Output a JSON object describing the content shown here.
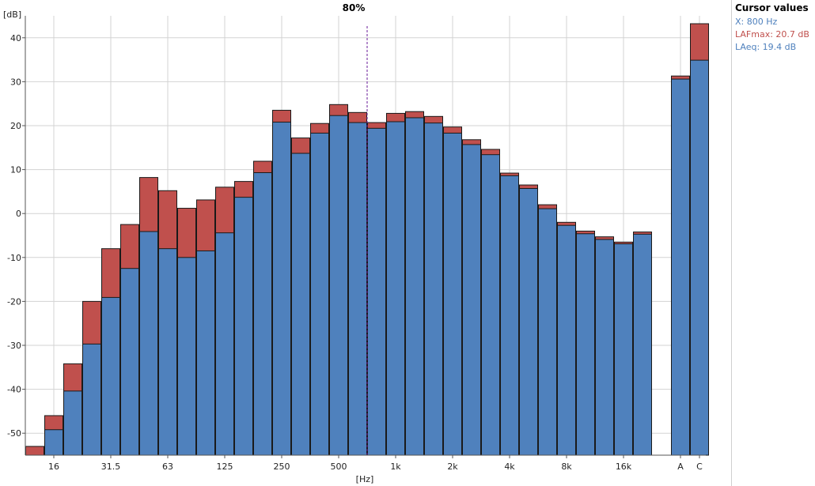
{
  "chart_data": {
    "type": "bar",
    "title": "80%",
    "ylabel": "[dB]",
    "xlabel": "[Hz]",
    "ylim": [
      -55,
      45
    ],
    "y_ticks": [
      -50,
      -40,
      -30,
      -20,
      -10,
      0,
      10,
      20,
      30,
      40
    ],
    "grid": true,
    "categories": [
      "12.5",
      "16",
      "20",
      "25",
      "31.5",
      "40",
      "50",
      "63",
      "80",
      "100",
      "125",
      "160",
      "200",
      "250",
      "315",
      "400",
      "500",
      "630",
      "800",
      "1k",
      "1.25k",
      "1.6k",
      "2k",
      "2.5k",
      "3.15k",
      "4k",
      "5k",
      "6.3k",
      "8k",
      "10k",
      "12.5k",
      "16k",
      "20k",
      "A",
      "C"
    ],
    "x_tick_labels": [
      {
        "category": "16",
        "label": "16"
      },
      {
        "category": "31.5",
        "label": "31.5"
      },
      {
        "category": "63",
        "label": "63"
      },
      {
        "category": "125",
        "label": "125"
      },
      {
        "category": "250",
        "label": "250"
      },
      {
        "category": "500",
        "label": "500"
      },
      {
        "category": "1k",
        "label": "1k"
      },
      {
        "category": "2k",
        "label": "2k"
      },
      {
        "category": "4k",
        "label": "4k"
      },
      {
        "category": "8k",
        "label": "8k"
      },
      {
        "category": "16k",
        "label": "16k"
      },
      {
        "category": "A",
        "label": "A"
      },
      {
        "category": "C",
        "label": "C"
      }
    ],
    "series": [
      {
        "name": "LAFmax",
        "color": "#c0504d",
        "values": [
          -53,
          -46,
          -34.2,
          -20,
          -8,
          -2.5,
          8.2,
          5.2,
          1.2,
          3.1,
          6,
          7.3,
          11.9,
          23.5,
          17.2,
          20.5,
          24.8,
          23,
          20.7,
          22.8,
          23.2,
          22.1,
          19.7,
          16.8,
          14.6,
          9.2,
          6.5,
          2,
          -2,
          -4,
          -5.3,
          -6.5,
          -4.2,
          31.3,
          43.2
        ]
      },
      {
        "name": "LAeq",
        "color": "#4f81bd",
        "values": [
          -56,
          -49.2,
          -40.4,
          -29.7,
          -19.1,
          -12.5,
          -4.1,
          -8,
          -10,
          -8.5,
          -4.4,
          3.7,
          9.3,
          20.8,
          13.7,
          18.3,
          22.3,
          20.7,
          19.4,
          20.9,
          21.8,
          20.6,
          18.3,
          15.7,
          13.4,
          8.6,
          5.7,
          1.1,
          -2.7,
          -4.6,
          -5.9,
          -6.9,
          -4.7,
          30.6,
          34.9
        ]
      }
    ],
    "cursor": {
      "category": "800",
      "style": "dashed",
      "color": "#6a1b9a"
    }
  },
  "cursor_panel": {
    "title": "Cursor values",
    "x_line": "X:  800 Hz",
    "lafmax_line": "LAFmax:  20.7 dB",
    "laeq_line": "LAeq:  19.4 dB",
    "x_color": "#4f81bd",
    "lafmax_color": "#c0504d",
    "laeq_color": "#4f81bd"
  }
}
